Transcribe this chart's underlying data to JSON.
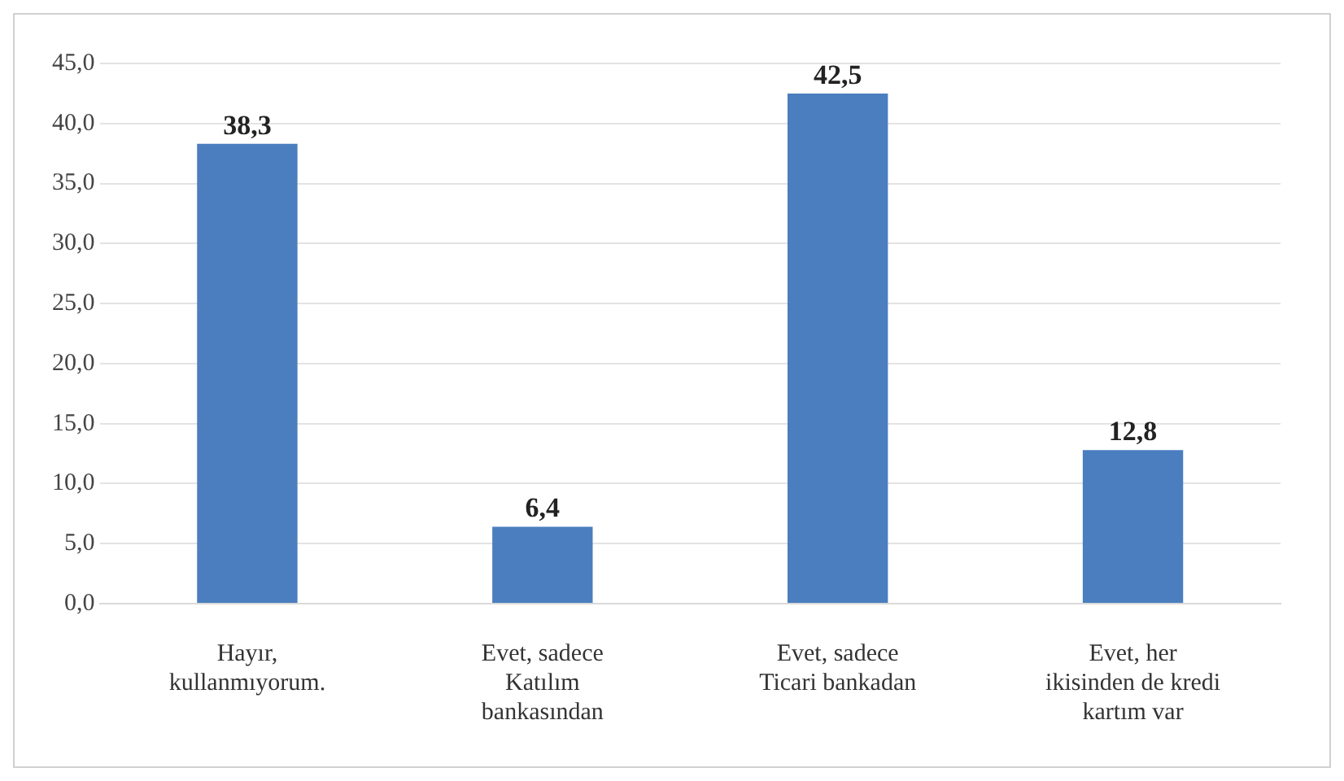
{
  "chart_data": {
    "type": "bar",
    "categories": [
      "Hayır, kullanmıyorum.",
      "Evet, sadece Katılım bankasından",
      "Evet, sadece Ticari bankadan",
      "Evet, her ikisinden de kredi kartım var"
    ],
    "values": [
      38.3,
      6.4,
      42.5,
      12.8
    ],
    "value_labels": [
      "38,3",
      "6,4",
      "42,5",
      "12,8"
    ],
    "color": "#4a7ebf",
    "ylim": [
      0,
      45
    ],
    "yticks": [
      {
        "value": 0,
        "label": "0,0"
      },
      {
        "value": 5,
        "label": "5,0"
      },
      {
        "value": 10,
        "label": "10,0"
      },
      {
        "value": 15,
        "label": "15,0"
      },
      {
        "value": 20,
        "label": "20,0"
      },
      {
        "value": 25,
        "label": "25,0"
      },
      {
        "value": 30,
        "label": "30,0"
      },
      {
        "value": 35,
        "label": "35,0"
      },
      {
        "value": 40,
        "label": "40,0"
      },
      {
        "value": 45,
        "label": "45,0"
      }
    ],
    "grid": "y"
  }
}
